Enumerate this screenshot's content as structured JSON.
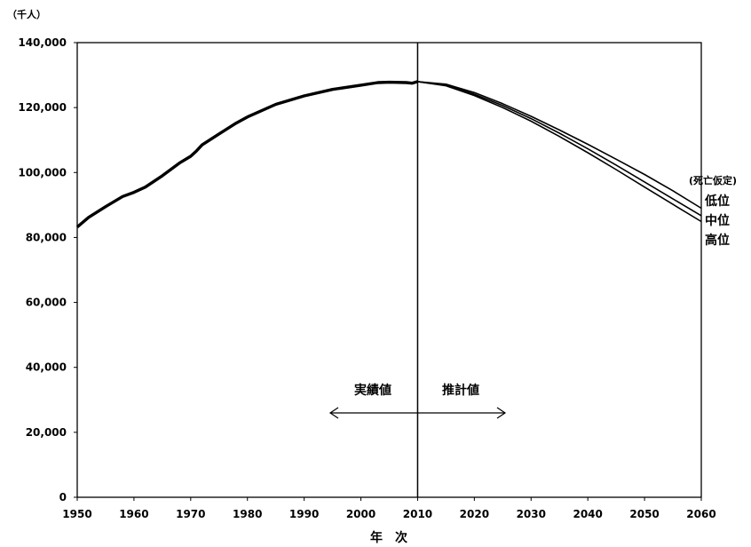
{
  "chart_data": {
    "type": "line",
    "y_unit": "（千人）",
    "xlabel": "年　次",
    "xlim": [
      1950,
      2060
    ],
    "ylim": [
      0,
      140000
    ],
    "x_ticks": [
      "1950",
      "1960",
      "1970",
      "1980",
      "1990",
      "2000",
      "2010",
      "2020",
      "2030",
      "2040",
      "2050",
      "2060"
    ],
    "y_ticks": [
      "0",
      "20,000",
      "40,000",
      "60,000",
      "80,000",
      "100,000",
      "120,000",
      "140,000"
    ],
    "grid": false,
    "divider_year": 2010,
    "annotations": {
      "actual": "実績値",
      "projection": "推計値",
      "legend_title": "(死亡仮定)",
      "legend_labels": [
        "低位",
        "中位",
        "高位"
      ]
    },
    "actual_series": {
      "x": [
        1950,
        1952,
        1955,
        1958,
        1960,
        1962,
        1965,
        1968,
        1970,
        1971,
        1972,
        1975,
        1978,
        1980,
        1985,
        1990,
        1995,
        2000,
        2003,
        2005,
        2008,
        2009,
        2010
      ],
      "values": [
        83200,
        86200,
        89500,
        92600,
        93900,
        95500,
        99000,
        102900,
        105000,
        106600,
        108500,
        111900,
        115200,
        117100,
        121000,
        123600,
        125600,
        126900,
        127700,
        127800,
        127700,
        127500,
        128000
      ]
    },
    "series": [
      {
        "name": "低位",
        "x": [
          2010,
          2015,
          2020,
          2025,
          2030,
          2035,
          2040,
          2045,
          2050,
          2055,
          2060
        ],
        "values": [
          128000,
          127200,
          124600,
          121200,
          117300,
          113100,
          108700,
          104100,
          99400,
          94400,
          89000
        ]
      },
      {
        "name": "中位",
        "x": [
          2010,
          2015,
          2020,
          2025,
          2030,
          2035,
          2040,
          2045,
          2050,
          2055,
          2060
        ],
        "values": [
          128000,
          126900,
          124100,
          120600,
          116600,
          112100,
          107300,
          102300,
          97100,
          91900,
          86700
        ]
      },
      {
        "name": "高位",
        "x": [
          2010,
          2015,
          2020,
          2025,
          2030,
          2035,
          2040,
          2045,
          2050,
          2055,
          2060
        ],
        "values": [
          128000,
          126700,
          123700,
          120000,
          115800,
          111100,
          106100,
          100900,
          95500,
          90200,
          84900
        ]
      }
    ],
    "colors": {
      "line": "#000000",
      "axis": "#000000"
    }
  }
}
